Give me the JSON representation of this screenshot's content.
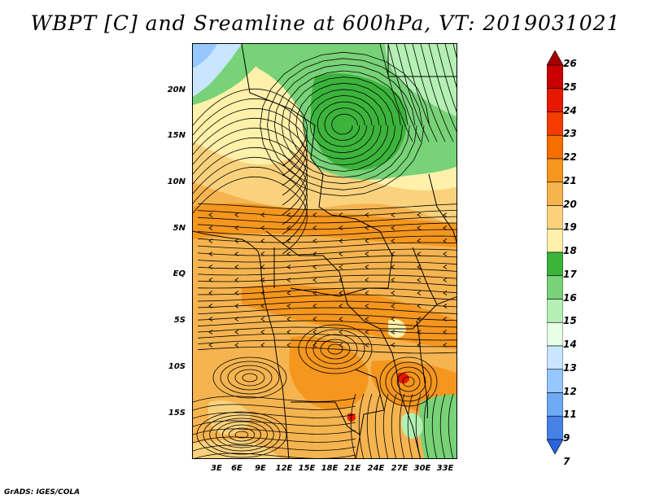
{
  "title": "WBPT [C] and Sreamline at 600hPa, VT: 2019031021",
  "credit": "GrADS: IGES/COLA",
  "lat_labels": [
    "20N",
    "15N",
    "10N",
    "5N",
    "EQ",
    "5S",
    "10S",
    "15S"
  ],
  "lon_labels": [
    "3E",
    "6E",
    "9E",
    "12E",
    "15E",
    "18E",
    "21E",
    "24E",
    "27E",
    "30E",
    "33E"
  ],
  "colorbar": {
    "labels": [
      "26",
      "25",
      "24",
      "23",
      "22",
      "21",
      "20",
      "19",
      "18",
      "17",
      "16",
      "15",
      "14",
      "13",
      "12",
      "11",
      "9",
      "7"
    ],
    "colors": [
      "#a50000",
      "#c80000",
      "#e61900",
      "#f53c00",
      "#f56e00",
      "#f5961e",
      "#f5b450",
      "#fad27d",
      "#fff0aa",
      "#3cb43c",
      "#78d278",
      "#b4f0b4",
      "#e6ffe6",
      "#c8e6ff",
      "#96c8ff",
      "#6eaaf5",
      "#4682e6",
      "#2864dc"
    ]
  },
  "map_colors": {
    "orange_main": "#f5b450",
    "orange_dark": "#f5961e",
    "yellow": "#fad27d",
    "pale_yellow": "#fff0aa",
    "green_dark": "#3cb43c",
    "green_mid": "#78d278",
    "green_light": "#b4f0b4",
    "blue_light": "#c8e6ff",
    "blue_mid": "#96c8ff",
    "red": "#e61900"
  }
}
